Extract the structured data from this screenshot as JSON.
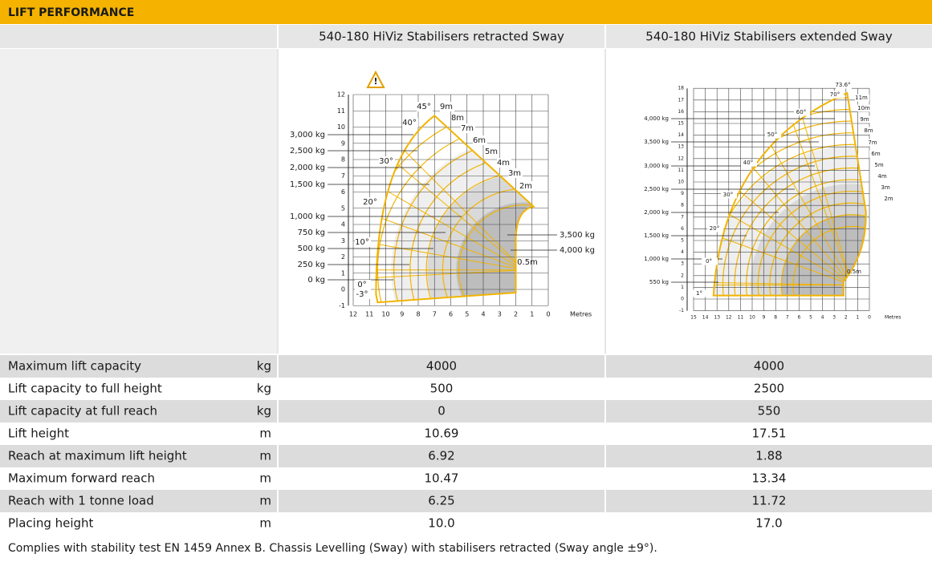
{
  "header": {
    "title": "LIFT PERFORMANCE"
  },
  "table": {
    "columns": [
      "540-180 HiViz Stabilisers retracted Sway",
      "540-180 HiViz Stabilisers extended Sway"
    ],
    "rows": [
      {
        "label": "Maximum lift capacity",
        "unit": "kg",
        "values": [
          "4000",
          "4000"
        ]
      },
      {
        "label": "Lift capacity to full height",
        "unit": "kg",
        "values": [
          "500",
          "2500"
        ]
      },
      {
        "label": "Lift capacity at full reach",
        "unit": "kg",
        "values": [
          "0",
          "550"
        ]
      },
      {
        "label": "Lift height",
        "unit": "m",
        "values": [
          "10.69",
          "17.51"
        ]
      },
      {
        "label": "Reach at maximum lift height",
        "unit": "m",
        "values": [
          "6.92",
          "1.88"
        ]
      },
      {
        "label": "Maximum forward reach",
        "unit": "m",
        "values": [
          "10.47",
          "13.34"
        ]
      },
      {
        "label": "Reach with 1 tonne load",
        "unit": "m",
        "values": [
          "6.25",
          "11.72"
        ]
      },
      {
        "label": "Placing height",
        "unit": "m",
        "values": [
          "10.0",
          "17.0"
        ]
      }
    ]
  },
  "diagrams": [
    {
      "yticks": [
        -1,
        0,
        1,
        2,
        3,
        4,
        5,
        6,
        7,
        8,
        9,
        10,
        11,
        12
      ],
      "xticks": [
        12,
        11,
        10,
        9,
        8,
        7,
        6,
        5,
        4,
        3,
        2,
        1,
        0
      ],
      "x_unit": "Metres",
      "load_labels": [
        "3,000 kg",
        "2,500 kg",
        "2,000 kg",
        "1,500 kg",
        "1,000 kg",
        "750 kg",
        "500 kg",
        "250 kg",
        "0 kg"
      ],
      "side_labels": [
        "3,500 kg",
        "4,000 kg"
      ],
      "angle_labels": [
        "45°",
        "40°",
        "30°",
        "20°",
        "10°",
        "0°",
        "-3°"
      ],
      "boom_labels": [
        "9m",
        "8m",
        "7m",
        "6m",
        "5m",
        "4m",
        "3m",
        "2m"
      ],
      "reach_label": "0.5m"
    },
    {
      "yticks": [
        -1,
        0,
        1,
        2,
        3,
        4,
        5,
        6,
        7,
        8,
        9,
        10,
        11,
        12,
        13,
        14,
        15,
        16,
        17,
        18
      ],
      "xticks": [
        15,
        14,
        13,
        12,
        11,
        10,
        9,
        8,
        7,
        6,
        5,
        4,
        3,
        2,
        1,
        0
      ],
      "x_unit": "Metres",
      "load_labels": [
        "4,000 kg",
        "3,500 kg",
        "3,000 kg",
        "2,500 kg",
        "2,000 kg",
        "1,500 kg",
        "1,000 kg",
        "550 kg"
      ],
      "side_labels": [],
      "angle_labels": [
        "1°",
        "0°",
        "20°",
        "30°",
        "40°",
        "50°",
        "60°",
        "70°",
        "73.6°"
      ],
      "boom_labels": [
        "11m",
        "10m",
        "9m",
        "8m",
        "7m",
        "6m",
        "5m",
        "4m",
        "3m",
        "2m"
      ],
      "reach_label": "0.5m"
    }
  ],
  "footer": {
    "note": "Complies with stability test EN 1459 Annex B. Chassis Levelling (Sway) with stabilisers retracted (Sway angle ±9°)."
  }
}
